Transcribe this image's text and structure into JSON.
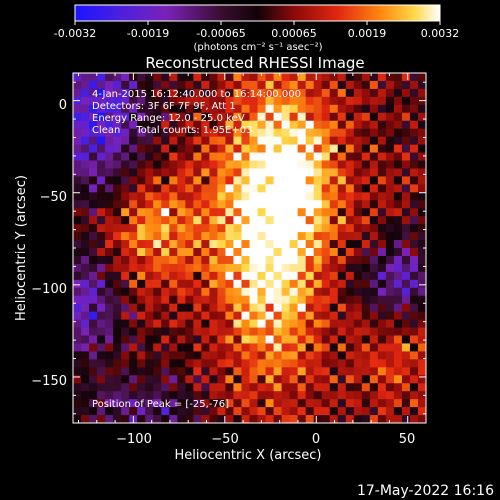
{
  "colorbar": {
    "ticks": [
      "-0.0032",
      "-0.0019",
      "-0.00065",
      "0.00065",
      "0.0019",
      "0.0032"
    ],
    "unit_label": "(photons cm⁻² s⁻¹ asec⁻²)",
    "range": [
      -0.0032,
      0.0032
    ]
  },
  "plot": {
    "title": "Reconstructed RHESSI Image",
    "xlabel": "Heliocentric X (arcsec)",
    "ylabel": "Heliocentric Y (arcsec)",
    "info_line1": "4-Jan-2015 16:12:40.000 to 16:14:00.000",
    "info_line2": "Detectors: 3F 6F 7F 9F, Att 1",
    "info_line3": "Energy Range: 12.0 - 25.0 keV",
    "info_line4": "Clean     Total counts: 1.95E+03",
    "peak_label": "Position of Peak = [-25,-76]",
    "timestamp": "17-May-2022 16:16"
  },
  "chart_data": {
    "type": "heatmap",
    "title": "Reconstructed RHESSI Image",
    "xlabel": "Heliocentric X (arcsec)",
    "ylabel": "Heliocentric Y (arcsec)",
    "xlim": [
      -133,
      60
    ],
    "ylim": [
      -175,
      15
    ],
    "xticks": [
      -100,
      -50,
      0,
      50
    ],
    "yticks": [
      0,
      -50,
      -100,
      -150
    ],
    "xtick_labels": [
      "−100",
      "−50",
      "0",
      "50"
    ],
    "ytick_labels": [
      "0",
      "−50",
      "−100",
      "−150"
    ],
    "colorbar_range": [
      -0.0032,
      0.0032
    ],
    "peak_position": [
      -25,
      -76
    ]
  }
}
